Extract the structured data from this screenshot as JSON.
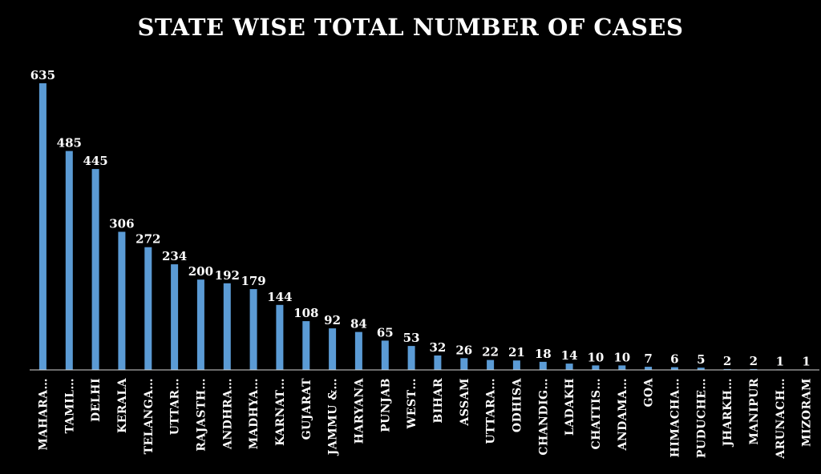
{
  "chart_data": {
    "type": "bar",
    "title": "STATE WISE TOTAL NUMBER OF CASES",
    "xlabel": "",
    "ylabel": "",
    "ylim": [
      0,
      635
    ],
    "grid": false,
    "legend": "none",
    "bar_color": "#5b9bd5",
    "background": "#000000",
    "categories": [
      "MAHARA…",
      "TAMIL…",
      "DELHI",
      "KERALA",
      "TELANGA…",
      "UTTAR…",
      "RAJASTH…",
      "ANDHRA…",
      "MADHYA…",
      "KARNAT…",
      "GUJARAT",
      "JAMMU &…",
      "HARYANA",
      "PUNJAB",
      "WEST…",
      "BIHAR",
      "ASSAM",
      "UTTARA…",
      "ODHISA",
      "CHANDIG…",
      "LADAKH",
      "CHATTIS…",
      "ANDAMA…",
      "GOA",
      "HIMACHA…",
      "PUDUCHE…",
      "JHARKH…",
      "MANIPUR",
      "ARUNACH…",
      "MIZORAM"
    ],
    "values": [
      635,
      485,
      445,
      306,
      272,
      234,
      200,
      192,
      179,
      144,
      108,
      92,
      84,
      65,
      53,
      32,
      26,
      22,
      21,
      18,
      14,
      10,
      10,
      7,
      6,
      5,
      2,
      2,
      1,
      1
    ]
  }
}
